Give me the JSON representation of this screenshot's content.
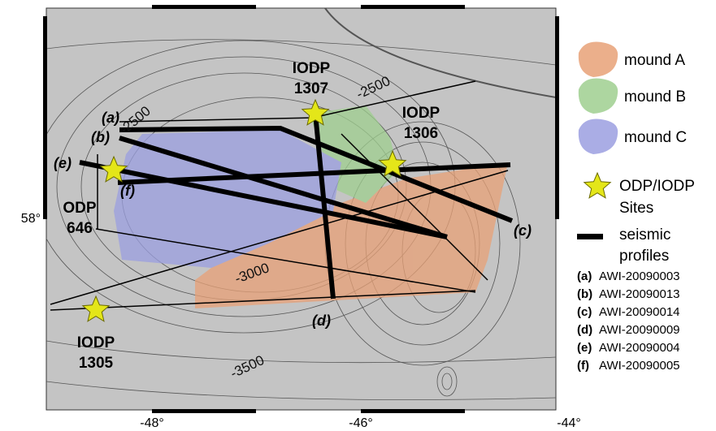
{
  "map": {
    "axes": {
      "lon_labels": [
        "-48°",
        "-46°",
        "-44°"
      ],
      "lat_labels": [
        "58°"
      ]
    },
    "contour_labels": [
      "-2500",
      "-2500",
      "-3000",
      "-3500"
    ],
    "sites": [
      {
        "lines": [
          "IODP",
          "1307"
        ]
      },
      {
        "lines": [
          "IODP",
          "1306"
        ]
      },
      {
        "lines": [
          "ODP",
          "646"
        ]
      },
      {
        "lines": [
          "IODP",
          "1305"
        ]
      }
    ],
    "profile_labels": [
      "(a)",
      "(b)",
      "(c)",
      "(d)",
      "(e)",
      "(f)"
    ]
  },
  "legend": {
    "items": [
      "mound A",
      "mound B",
      "mound C"
    ],
    "sites": [
      "ODP/IODP",
      "Sites"
    ],
    "profiles": [
      "seismic",
      "profiles"
    ],
    "list": [
      {
        "code": "(a)",
        "name": "AWI-20090003"
      },
      {
        "code": "(b)",
        "name": "AWI-20090013"
      },
      {
        "code": "(c)",
        "name": "AWI-20090014"
      },
      {
        "code": "(d)",
        "name": "AWI-20090009"
      },
      {
        "code": "(e)",
        "name": "AWI-20090004"
      },
      {
        "code": "(f)",
        "name": "AWI-20090005"
      }
    ]
  }
}
